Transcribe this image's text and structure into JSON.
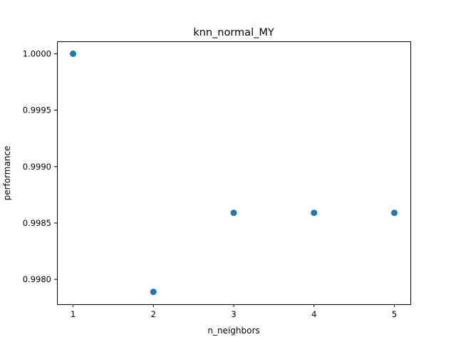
{
  "chart_data": {
    "type": "scatter",
    "title": "knn_normal_MY",
    "xlabel": "n_neighbors",
    "ylabel": "performance",
    "x": [
      1,
      2,
      3,
      4,
      5
    ],
    "series": [
      {
        "values": [
          1.0,
          0.99789,
          0.99859,
          0.99859,
          0.99859
        ],
        "color": "#1f77b4"
      }
    ],
    "xlim": [
      0.8,
      5.2
    ],
    "ylim": [
      0.99778,
      1.00011
    ],
    "xticks": [
      "1",
      "2",
      "3",
      "4",
      "5"
    ],
    "yticks": [
      "0.9980",
      "0.9985",
      "0.9990",
      "0.9995",
      "1.0000"
    ],
    "grid": false
  }
}
